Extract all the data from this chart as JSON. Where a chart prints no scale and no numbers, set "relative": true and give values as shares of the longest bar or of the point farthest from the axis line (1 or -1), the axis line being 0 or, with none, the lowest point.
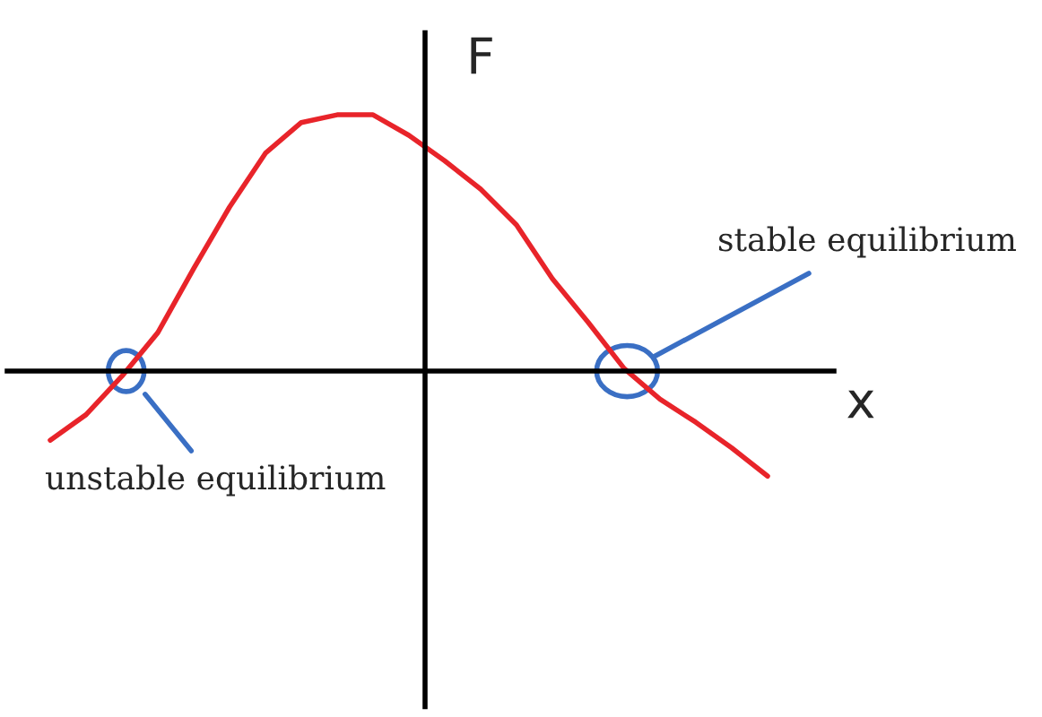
{
  "chart_data": {
    "type": "line",
    "relative": true,
    "xlabel": "x",
    "ylabel": "F",
    "categories": [
      null,
      null,
      null,
      null,
      null,
      null,
      null,
      null,
      null,
      null,
      null,
      null,
      null,
      null,
      null,
      null,
      null,
      null,
      null,
      null,
      null,
      null,
      null,
      null
    ],
    "series": [
      {
        "color": "#e8242a",
        "values": [
          null,
          -0.27,
          -0.17,
          -0.02,
          0.15,
          0.4,
          0.64,
          0.85,
          0.97,
          1,
          1,
          0.92,
          0.82,
          0.71,
          0.57,
          0.36,
          0.19,
          0.01,
          -0.11,
          -0.2,
          -0.3,
          -0.41,
          null,
          null
        ]
      }
    ],
    "annotations": [
      "stable equilibrium",
      "unstable equilibrium"
    ],
    "legend": false,
    "marker": "none",
    "line_style": "solid"
  }
}
